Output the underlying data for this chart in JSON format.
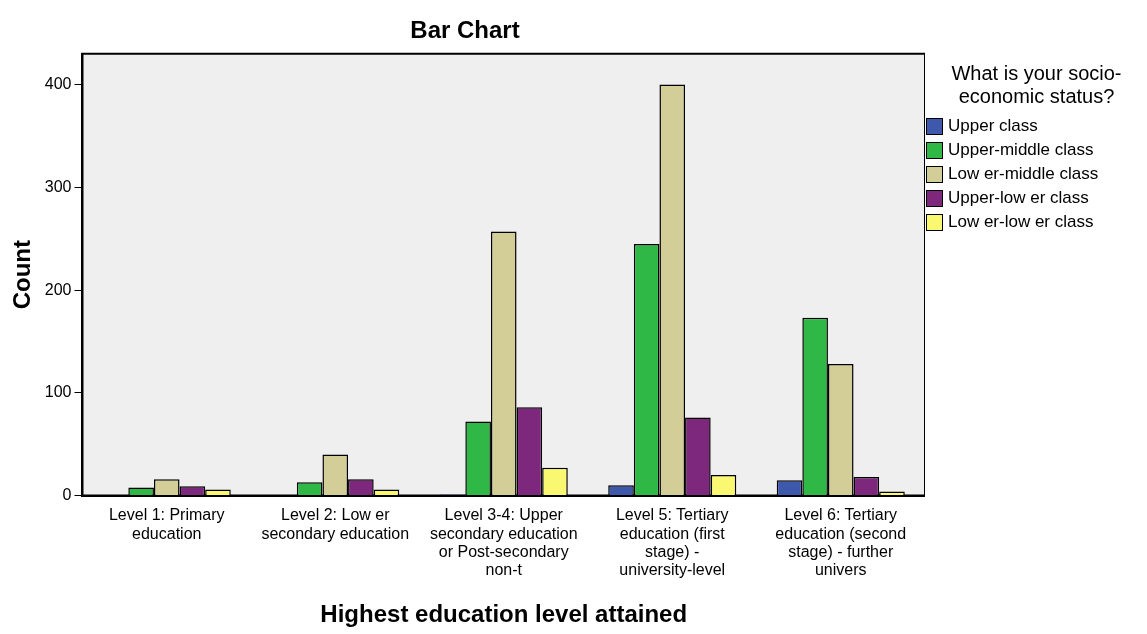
{
  "chart_data": {
    "type": "bar",
    "title": "Bar Chart",
    "xlabel": "Highest education level attained",
    "ylabel": "Count",
    "legend_title": "What is your socio-economic status?",
    "categories": [
      "Level 1: Primary education",
      "Level 2: Low er secondary education",
      "Level 3-4: Upper secondary education or Post-secondary non-t",
      "Level 5: Tertiary education (first stage) - university-level",
      "Level 6: Tertiary education (second stage) - further univers"
    ],
    "series": [
      {
        "name": "Upper class",
        "color": "#3e58ac",
        "values": [
          null,
          null,
          1,
          10,
          15
        ]
      },
      {
        "name": "Upper-middle class",
        "color": "#2fb846",
        "values": [
          8,
          13,
          72,
          245,
          173
        ]
      },
      {
        "name": "Low er-middle class",
        "color": "#d3ce97",
        "values": [
          16,
          40,
          257,
          400,
          128
        ]
      },
      {
        "name": "Upper-low er class",
        "color": "#7d287c",
        "values": [
          9,
          16,
          86,
          76,
          18
        ]
      },
      {
        "name": "Low er-low er class",
        "color": "#faf870",
        "values": [
          6,
          6,
          27,
          20,
          4
        ]
      }
    ],
    "ylim": [
      0,
      430
    ],
    "yticks": [
      0,
      100,
      200,
      300,
      400
    ],
    "grid": false,
    "legend": "right"
  }
}
